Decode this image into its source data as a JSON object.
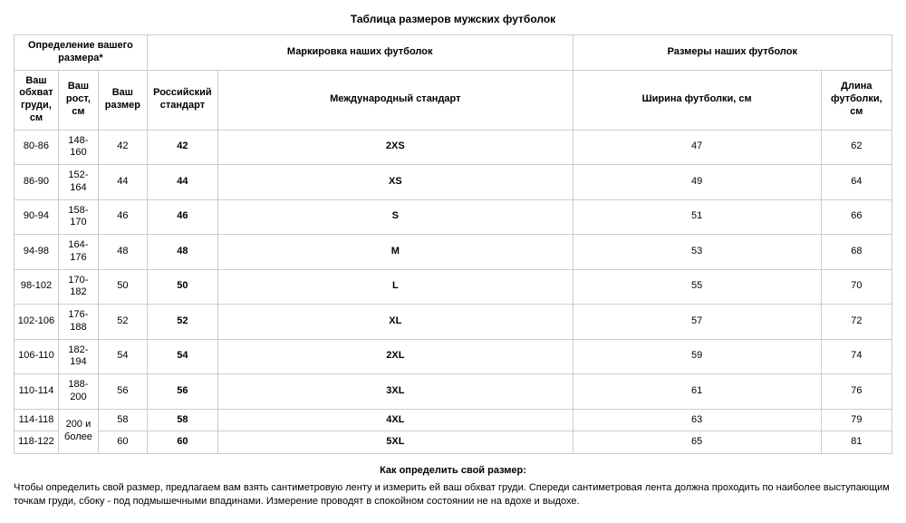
{
  "title": "Таблица размеров мужских футболок",
  "headers": {
    "group_determine": "Определение вашего размера*",
    "group_marking": "Маркировка наших футболок",
    "group_dims": "Размеры наших футболок",
    "chest": "Ваш обхват груди, см",
    "height": "Ваш рост, см",
    "your_size": "Ваш размер",
    "rus_std": "Российский стандарт",
    "intl_std": "Международный стандарт",
    "shirt_width": "Ширина футболки, см",
    "shirt_length": "Длина футболки, см"
  },
  "rows": [
    {
      "chest": "80-86",
      "height": "148-160",
      "your": "42",
      "rus": "42",
      "intl": "2XS",
      "width": "47",
      "length": "62"
    },
    {
      "chest": "86-90",
      "height": "152-164",
      "your": "44",
      "rus": "44",
      "intl": "XS",
      "width": "49",
      "length": "64"
    },
    {
      "chest": "90-94",
      "height": "158-170",
      "your": "46",
      "rus": "46",
      "intl": "S",
      "width": "51",
      "length": "66"
    },
    {
      "chest": "94-98",
      "height": "164-176",
      "your": "48",
      "rus": "48",
      "intl": "M",
      "width": "53",
      "length": "68"
    },
    {
      "chest": "98-102",
      "height": "170-182",
      "your": "50",
      "rus": "50",
      "intl": "L",
      "width": "55",
      "length": "70"
    },
    {
      "chest": "102-106",
      "height": "176-188",
      "your": "52",
      "rus": "52",
      "intl": "XL",
      "width": "57",
      "length": "72"
    },
    {
      "chest": "106-110",
      "height": "182-194",
      "your": "54",
      "rus": "54",
      "intl": "2XL",
      "width": "59",
      "length": "74"
    },
    {
      "chest": "110-114",
      "height": "188-200",
      "your": "56",
      "rus": "56",
      "intl": "3XL",
      "width": "61",
      "length": "76"
    },
    {
      "chest": "114-118",
      "height": "",
      "your": "58",
      "rus": "58",
      "intl": "4XL",
      "width": "63",
      "length": "79"
    },
    {
      "chest": "118-122",
      "height": "",
      "your": "60",
      "rus": "60",
      "intl": "5XL",
      "width": "65",
      "length": "81"
    }
  ],
  "height_merged_last": "200 и более",
  "subtitle": "Как определить свой размер:",
  "note": "Чтобы определить свой размер, предлагаем вам взять сантиметровую ленту и измерить ей ваш обхват груди. Спереди сантиметровая лента должна проходить по наиболее выступающим точкам груди, сбоку - под подмышечными впадинами. Измерение проводят в спокойном состоянии не на вдохе и выдохе."
}
